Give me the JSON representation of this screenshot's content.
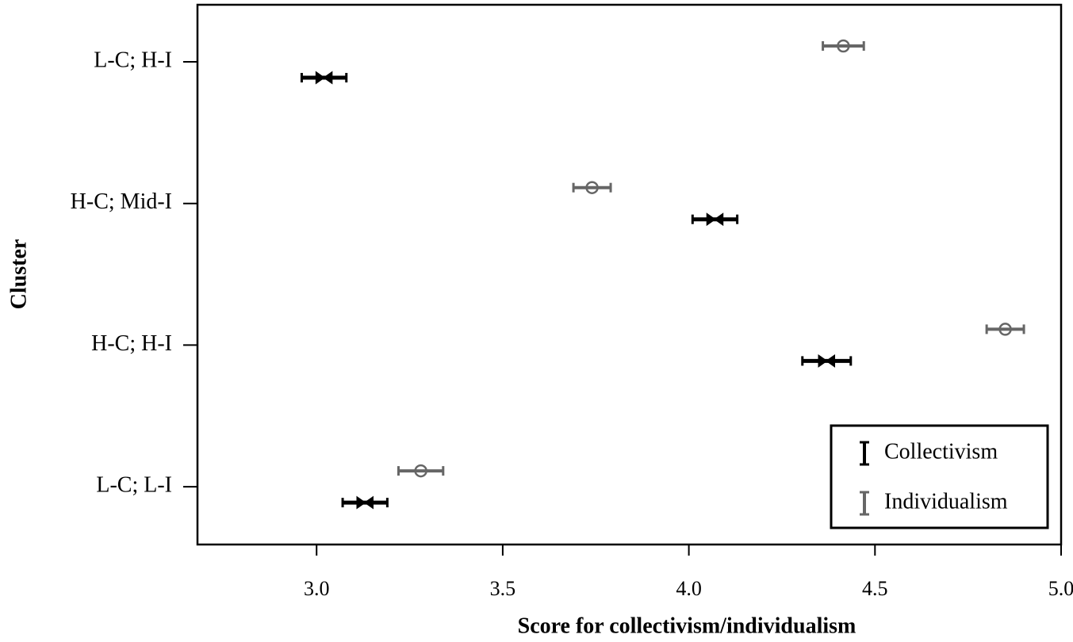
{
  "chart_data": {
    "type": "errorbar",
    "x_label": "Score for collectivism/individualism",
    "y_label": "Cluster",
    "categories": [
      "L-C; H-I",
      "H-C; Mid-I",
      "H-C; H-I",
      "L-C; L-I"
    ],
    "xlim": [
      2.68,
      5.0
    ],
    "xticks": [
      {
        "value": 3,
        "label": "3.0"
      },
      {
        "value": 3.5,
        "label": "3.5"
      },
      {
        "value": 4,
        "label": "4.0"
      },
      {
        "value": 4.5,
        "label": "4.5"
      },
      {
        "value": 5,
        "label": "5.0"
      }
    ],
    "legend_position": "lower right",
    "series": [
      {
        "name": "Collectivism",
        "color": "#000000",
        "marker": "bowtie",
        "values": [
          3.02,
          4.07,
          4.37,
          3.13
        ],
        "errors": [
          0.06,
          0.06,
          0.065,
          0.06
        ]
      },
      {
        "name": "Individualism",
        "color": "#666666",
        "marker": "circle",
        "values": [
          4.415,
          3.74,
          4.85,
          3.28
        ],
        "errors": [
          0.055,
          0.05,
          0.05,
          0.06
        ]
      }
    ]
  }
}
